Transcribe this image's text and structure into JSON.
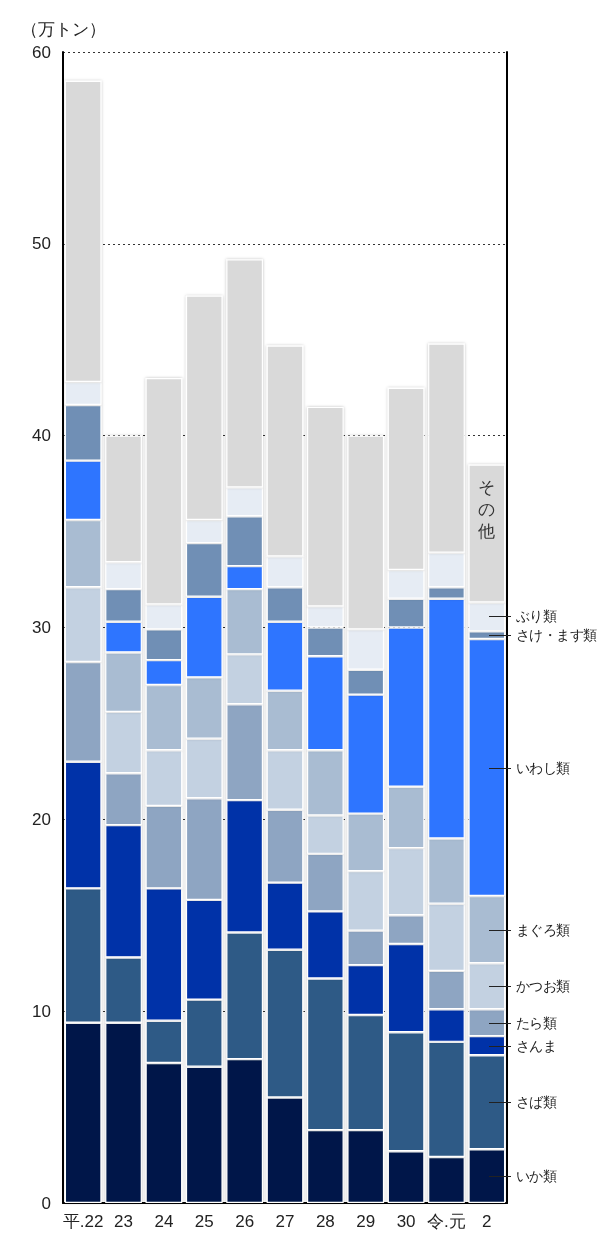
{
  "chart_data": {
    "type": "bar",
    "stacked": true,
    "ylabel": "（万トン）",
    "categories": [
      "平.22",
      "23",
      "24",
      "25",
      "26",
      "27",
      "28",
      "29",
      "30",
      "令.元",
      "2"
    ],
    "series": [
      {
        "name": "いか類",
        "color": "#001848",
        "values": [
          9.4,
          9.4,
          7.3,
          7.1,
          7.5,
          5.5,
          3.8,
          3.8,
          2.7,
          2.4,
          2.8
        ]
      },
      {
        "name": "さば類",
        "color": "#2e5a86",
        "values": [
          7.0,
          3.4,
          2.2,
          3.5,
          6.6,
          7.7,
          7.9,
          6.0,
          6.2,
          6.0,
          4.9
        ]
      },
      {
        "name": "さんま",
        "color": "#0432a8",
        "values": [
          6.6,
          6.9,
          6.9,
          5.2,
          6.9,
          3.5,
          3.5,
          2.6,
          4.6,
          1.7,
          1.0
        ]
      },
      {
        "name": "たら類",
        "color": "#8ea5c2",
        "values": [
          5.2,
          2.7,
          4.3,
          5.3,
          5.0,
          3.8,
          3.0,
          1.8,
          1.5,
          2.0,
          1.4
        ]
      },
      {
        "name": "かつお類",
        "color": "#c3d1e1",
        "values": [
          3.9,
          3.2,
          2.9,
          3.1,
          2.6,
          3.1,
          2.0,
          3.1,
          3.5,
          3.5,
          2.4
        ]
      },
      {
        "name": "まぐろ類",
        "color": "#a9bcd2",
        "values": [
          3.5,
          3.1,
          3.4,
          3.2,
          3.4,
          3.1,
          3.4,
          3.0,
          3.2,
          3.4,
          3.5
        ]
      },
      {
        "name": "いわし類",
        "color": "#2e75ff",
        "values": [
          3.1,
          1.6,
          1.3,
          4.2,
          1.2,
          3.6,
          4.9,
          6.2,
          8.3,
          12.5,
          13.4
        ]
      },
      {
        "name": "さけ・ます類",
        "color": "#6f8fb5",
        "values": [
          2.9,
          1.7,
          1.6,
          2.8,
          2.6,
          1.8,
          1.5,
          1.3,
          1.5,
          0.6,
          0.4
        ]
      },
      {
        "name": "ぶり類",
        "color": "#e6ecf4",
        "values": [
          1.2,
          1.4,
          1.3,
          1.2,
          1.5,
          1.6,
          1.1,
          2.1,
          1.5,
          1.8,
          1.5
        ]
      },
      {
        "name": "その他",
        "color": "#d9d9d9",
        "values": [
          15.7,
          6.6,
          11.8,
          11.7,
          11.9,
          11.0,
          10.4,
          10.1,
          9.5,
          10.9,
          7.2
        ]
      }
    ],
    "ylim": [
      0,
      60
    ],
    "yticks": [
      0,
      10,
      20,
      30,
      40,
      50,
      60
    ],
    "grid": "y",
    "legend": false
  }
}
